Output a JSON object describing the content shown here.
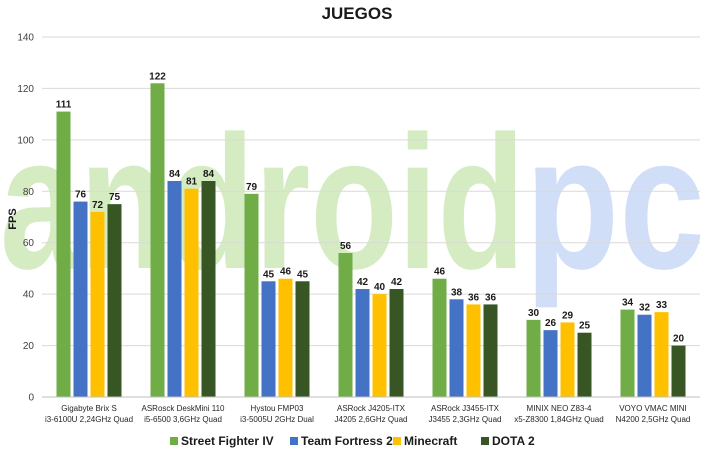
{
  "chart_data": {
    "type": "bar",
    "title": "JUEGOS",
    "ylabel": "FPS",
    "ylim": [
      0,
      140
    ],
    "yticks": [
      0,
      20,
      40,
      60,
      80,
      100,
      120,
      140
    ],
    "grid": true,
    "legend_position": "bottom",
    "watermark": {
      "left": "android",
      "right": "pc",
      "left_color": "#c8e6b0",
      "right_color": "#c2d4f5"
    },
    "categories": [
      [
        "Gigabyte Brix S",
        "i3-6100U 2,24GHz Quad"
      ],
      [
        "ASRosck DeskMini 110",
        "i5-6500 3,6GHz Quad"
      ],
      [
        "Hystou FMP03",
        "i3-5005U 2GHz Dual"
      ],
      [
        "ASRock J4205-ITX",
        "J4205 2,6GHz Quad"
      ],
      [
        "ASRock J3455-ITX",
        "J3455 2,3GHz Quad"
      ],
      [
        "MINIX NEO Z83-4",
        "x5-Z8300 1,84GHz Quad"
      ],
      [
        "VOYO VMAC MINI",
        "N4200 2,5GHz Quad"
      ]
    ],
    "series": [
      {
        "name": "Street Fighter IV",
        "color": "#70ad47",
        "values": [
          111,
          122,
          79,
          56,
          46,
          30,
          34
        ]
      },
      {
        "name": "Team Fortress 2",
        "color": "#4472c4",
        "values": [
          76,
          84,
          45,
          42,
          38,
          26,
          32
        ]
      },
      {
        "name": "Minecraft",
        "color": "#ffc000",
        "values": [
          72,
          81,
          46,
          40,
          36,
          29,
          33
        ]
      },
      {
        "name": "DOTA 2",
        "color": "#375623",
        "values": [
          75,
          84,
          45,
          42,
          36,
          25,
          20
        ]
      }
    ]
  }
}
